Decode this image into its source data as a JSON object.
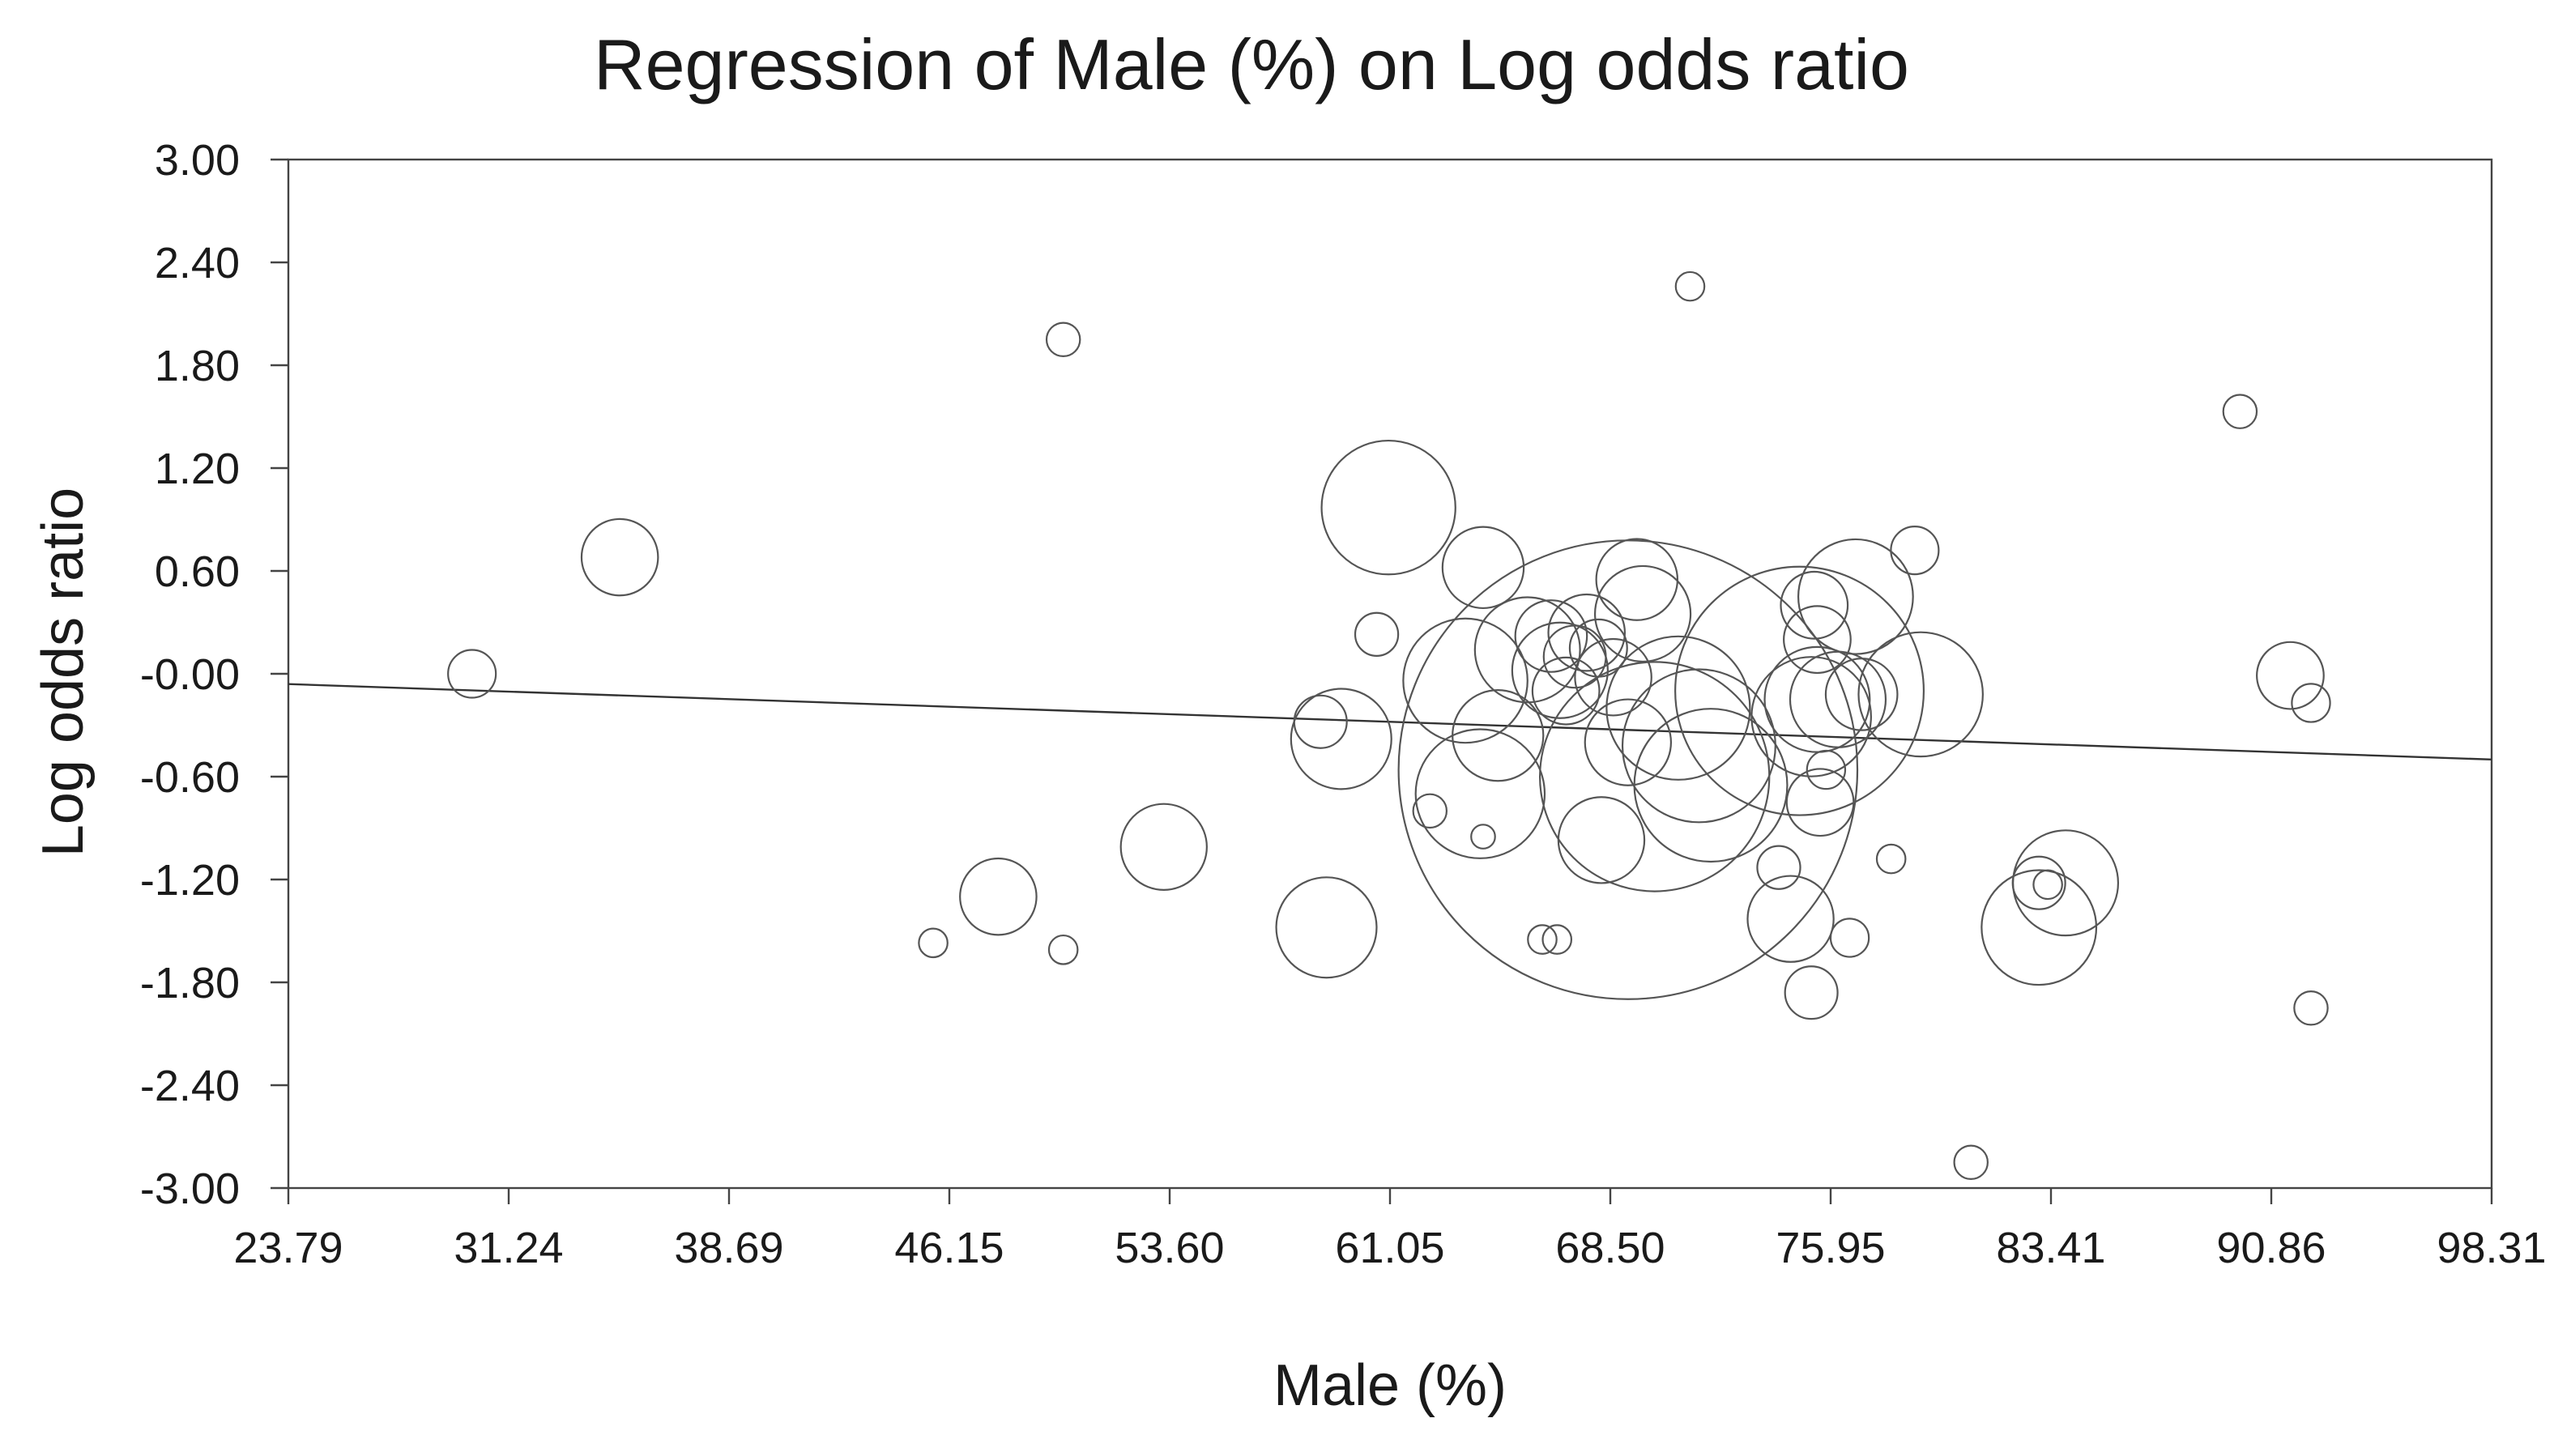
{
  "chart_data": {
    "type": "scatter",
    "title": "Regression of Male (%) on Log odds ratio",
    "xlabel": "Male (%)",
    "ylabel": "Log odds ratio",
    "xlim": [
      23.79,
      98.31
    ],
    "ylim": [
      -3.0,
      3.0
    ],
    "x_ticks": [
      "23.79",
      "31.24",
      "38.69",
      "46.15",
      "53.60",
      "61.05",
      "68.50",
      "75.95",
      "83.41",
      "90.86",
      "98.31"
    ],
    "y_ticks": [
      "3.00",
      "2.40",
      "1.80",
      "1.20",
      "0.60",
      "-0.00",
      "-0.60",
      "-1.20",
      "-1.80",
      "-2.40",
      "-3.00"
    ],
    "grid": false,
    "regression_line": {
      "x": [
        23.79,
        98.31
      ],
      "y": [
        -0.06,
        -0.5
      ]
    },
    "points": [
      {
        "x": 30.0,
        "y": 0.0,
        "weight": 1.0
      },
      {
        "x": 35.0,
        "y": 0.68,
        "weight": 1.6
      },
      {
        "x": 45.6,
        "y": -1.57,
        "weight": 0.6
      },
      {
        "x": 47.8,
        "y": -1.3,
        "weight": 1.6
      },
      {
        "x": 50.0,
        "y": 1.95,
        "weight": 0.7
      },
      {
        "x": 50.0,
        "y": -1.61,
        "weight": 0.6
      },
      {
        "x": 53.4,
        "y": -1.01,
        "weight": 1.8
      },
      {
        "x": 58.7,
        "y": -0.28,
        "weight": 1.1
      },
      {
        "x": 58.9,
        "y": -1.48,
        "weight": 2.1
      },
      {
        "x": 59.4,
        "y": -0.38,
        "weight": 2.1
      },
      {
        "x": 60.6,
        "y": 0.23,
        "weight": 0.9
      },
      {
        "x": 61.0,
        "y": 0.97,
        "weight": 2.8
      },
      {
        "x": 62.4,
        "y": -0.8,
        "weight": 0.7
      },
      {
        "x": 63.6,
        "y": -0.04,
        "weight": 2.6
      },
      {
        "x": 64.2,
        "y": -0.95,
        "weight": 0.5
      },
      {
        "x": 64.1,
        "y": -0.7,
        "weight": 2.7
      },
      {
        "x": 64.2,
        "y": 0.62,
        "weight": 1.7
      },
      {
        "x": 64.7,
        "y": -0.36,
        "weight": 1.9
      },
      {
        "x": 65.7,
        "y": 0.14,
        "weight": 2.2
      },
      {
        "x": 66.2,
        "y": -1.55,
        "weight": 0.6
      },
      {
        "x": 66.5,
        "y": 0.22,
        "weight": 1.5
      },
      {
        "x": 66.7,
        "y": -1.55,
        "weight": 0.6
      },
      {
        "x": 66.8,
        "y": 0.02,
        "weight": 2.0
      },
      {
        "x": 67.0,
        "y": -0.1,
        "weight": 1.4
      },
      {
        "x": 67.3,
        "y": 0.1,
        "weight": 1.3
      },
      {
        "x": 67.7,
        "y": 0.24,
        "weight": 1.6
      },
      {
        "x": 68.1,
        "y": 0.15,
        "weight": 1.2
      },
      {
        "x": 68.2,
        "y": -0.97,
        "weight": 1.8
      },
      {
        "x": 68.6,
        "y": -0.02,
        "weight": 1.6
      },
      {
        "x": 69.1,
        "y": -0.4,
        "weight": 1.8
      },
      {
        "x": 69.1,
        "y": -0.56,
        "weight": 9.6
      },
      {
        "x": 69.4,
        "y": 0.55,
        "weight": 1.7
      },
      {
        "x": 69.6,
        "y": 0.35,
        "weight": 2.0
      },
      {
        "x": 70.0,
        "y": -0.6,
        "weight": 4.8
      },
      {
        "x": 70.8,
        "y": -0.2,
        "weight": 3.0
      },
      {
        "x": 71.2,
        "y": 2.26,
        "weight": 0.6
      },
      {
        "x": 71.5,
        "y": -0.42,
        "weight": 3.2
      },
      {
        "x": 71.9,
        "y": -0.65,
        "weight": 3.2
      },
      {
        "x": 74.2,
        "y": -1.13,
        "weight": 0.9
      },
      {
        "x": 74.6,
        "y": -1.43,
        "weight": 1.8
      },
      {
        "x": 74.9,
        "y": -0.1,
        "weight": 5.2
      },
      {
        "x": 75.3,
        "y": -0.25,
        "weight": 2.5
      },
      {
        "x": 75.3,
        "y": -1.86,
        "weight": 1.1
      },
      {
        "x": 75.4,
        "y": 0.4,
        "weight": 1.4
      },
      {
        "x": 75.5,
        "y": 0.2,
        "weight": 1.4
      },
      {
        "x": 75.5,
        "y": -0.15,
        "weight": 2.2
      },
      {
        "x": 75.6,
        "y": -0.75,
        "weight": 1.4
      },
      {
        "x": 75.8,
        "y": -0.56,
        "weight": 0.8
      },
      {
        "x": 76.2,
        "y": -0.15,
        "weight": 2.0
      },
      {
        "x": 76.6,
        "y": -1.54,
        "weight": 0.8
      },
      {
        "x": 76.8,
        "y": 0.45,
        "weight": 2.4
      },
      {
        "x": 77.0,
        "y": -0.12,
        "weight": 1.5
      },
      {
        "x": 78.0,
        "y": -1.08,
        "weight": 0.6
      },
      {
        "x": 78.8,
        "y": 0.72,
        "weight": 1.0
      },
      {
        "x": 79.0,
        "y": -0.12,
        "weight": 2.6
      },
      {
        "x": 80.7,
        "y": -2.85,
        "weight": 0.7
      },
      {
        "x": 83.0,
        "y": -1.22,
        "weight": 1.1
      },
      {
        "x": 83.3,
        "y": -1.23,
        "weight": 0.6
      },
      {
        "x": 83.0,
        "y": -1.48,
        "weight": 2.4
      },
      {
        "x": 83.9,
        "y": -1.22,
        "weight": 2.2
      },
      {
        "x": 89.8,
        "y": 1.53,
        "weight": 0.7
      },
      {
        "x": 91.5,
        "y": -0.01,
        "weight": 1.4
      },
      {
        "x": 92.2,
        "y": -0.17,
        "weight": 0.8
      },
      {
        "x": 92.2,
        "y": -1.95,
        "weight": 0.7
      }
    ]
  }
}
